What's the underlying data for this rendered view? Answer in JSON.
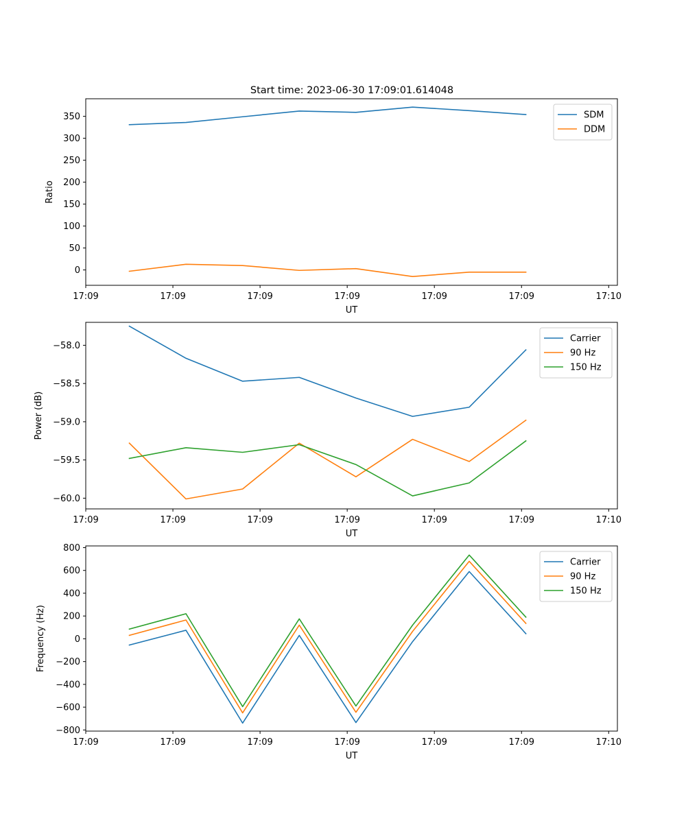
{
  "figure": {
    "title": "Start time: 2023-06-30 17:09:01.614048"
  },
  "chart_data": [
    {
      "type": "line",
      "title": "Start time: 2023-06-30 17:09:01.614048",
      "xlabel": "UT",
      "ylabel": "Ratio",
      "xlim": [
        0,
        6.1
      ],
      "ylim": [
        -35,
        390
      ],
      "x": [
        0.5,
        1.15,
        1.8,
        2.45,
        3.1,
        3.75,
        4.4,
        5.05
      ],
      "x_ticks": [
        0,
        1,
        2,
        3,
        4,
        5,
        6
      ],
      "x_tick_labels": [
        "17:09",
        "17:09",
        "17:09",
        "17:09",
        "17:09",
        "17:09",
        "17:10"
      ],
      "y_ticks": [
        0,
        50,
        100,
        150,
        200,
        250,
        300,
        350
      ],
      "y_tick_labels": [
        "0",
        "50",
        "100",
        "150",
        "200",
        "250",
        "300",
        "350"
      ],
      "grid": false,
      "legend": "top-right",
      "series": [
        {
          "name": "SDM",
          "color": "#1f77b4",
          "values": [
            331,
            336,
            349,
            362,
            359,
            371,
            363,
            354
          ]
        },
        {
          "name": "DDM",
          "color": "#ff7f0e",
          "values": [
            -3,
            13,
            10,
            -1,
            3,
            -15,
            -5,
            -5
          ]
        }
      ]
    },
    {
      "type": "line",
      "title": "",
      "xlabel": "UT",
      "ylabel": "Power (dB)",
      "xlim": [
        0,
        6.1
      ],
      "ylim": [
        -60.14,
        -57.7
      ],
      "x": [
        0.5,
        1.15,
        1.8,
        2.45,
        3.1,
        3.75,
        4.4,
        5.05
      ],
      "x_ticks": [
        0,
        1,
        2,
        3,
        4,
        5,
        6
      ],
      "x_tick_labels": [
        "17:09",
        "17:09",
        "17:09",
        "17:09",
        "17:09",
        "17:09",
        "17:10"
      ],
      "y_ticks": [
        -60.0,
        -59.5,
        -59.0,
        -58.5,
        -58.0
      ],
      "y_tick_labels": [
        "−60.0",
        "−59.5",
        "−59.0",
        "−58.5",
        "−58.0"
      ],
      "grid": false,
      "legend": "top-right",
      "series": [
        {
          "name": "Carrier",
          "color": "#1f77b4",
          "values": [
            -57.75,
            -58.17,
            -58.47,
            -58.42,
            -58.69,
            -58.93,
            -58.81,
            -58.06
          ]
        },
        {
          "name": "90 Hz",
          "color": "#ff7f0e",
          "values": [
            -59.28,
            -60.01,
            -59.88,
            -59.28,
            -59.72,
            -59.23,
            -59.52,
            -58.98
          ]
        },
        {
          "name": "150 Hz",
          "color": "#2ca02c",
          "values": [
            -59.48,
            -59.34,
            -59.4,
            -59.3,
            -59.56,
            -59.97,
            -59.8,
            -59.25
          ]
        }
      ]
    },
    {
      "type": "line",
      "title": "",
      "xlabel": "UT",
      "ylabel": "Frequency (Hz)",
      "xlim": [
        0,
        6.1
      ],
      "ylim": [
        -810,
        815
      ],
      "x": [
        0.5,
        1.15,
        1.8,
        2.45,
        3.1,
        3.75,
        4.4,
        5.05
      ],
      "x_ticks": [
        0,
        1,
        2,
        3,
        4,
        5,
        6
      ],
      "x_tick_labels": [
        "17:09",
        "17:09",
        "17:09",
        "17:09",
        "17:09",
        "17:09",
        "17:10"
      ],
      "y_ticks": [
        -800,
        -600,
        -400,
        -200,
        0,
        200,
        400,
        600,
        800
      ],
      "y_tick_labels": [
        "−800",
        "−600",
        "−400",
        "−200",
        "0",
        "200",
        "400",
        "600",
        "800"
      ],
      "grid": false,
      "legend": "top-right",
      "series": [
        {
          "name": "Carrier",
          "color": "#1f77b4",
          "values": [
            -55,
            75,
            -740,
            30,
            -735,
            -25,
            590,
            45
          ]
        },
        {
          "name": "90 Hz",
          "color": "#ff7f0e",
          "values": [
            30,
            165,
            -650,
            120,
            -645,
            65,
            680,
            135
          ]
        },
        {
          "name": "150 Hz",
          "color": "#2ca02c",
          "values": [
            85,
            220,
            -595,
            175,
            -590,
            120,
            735,
            190
          ]
        }
      ]
    }
  ]
}
